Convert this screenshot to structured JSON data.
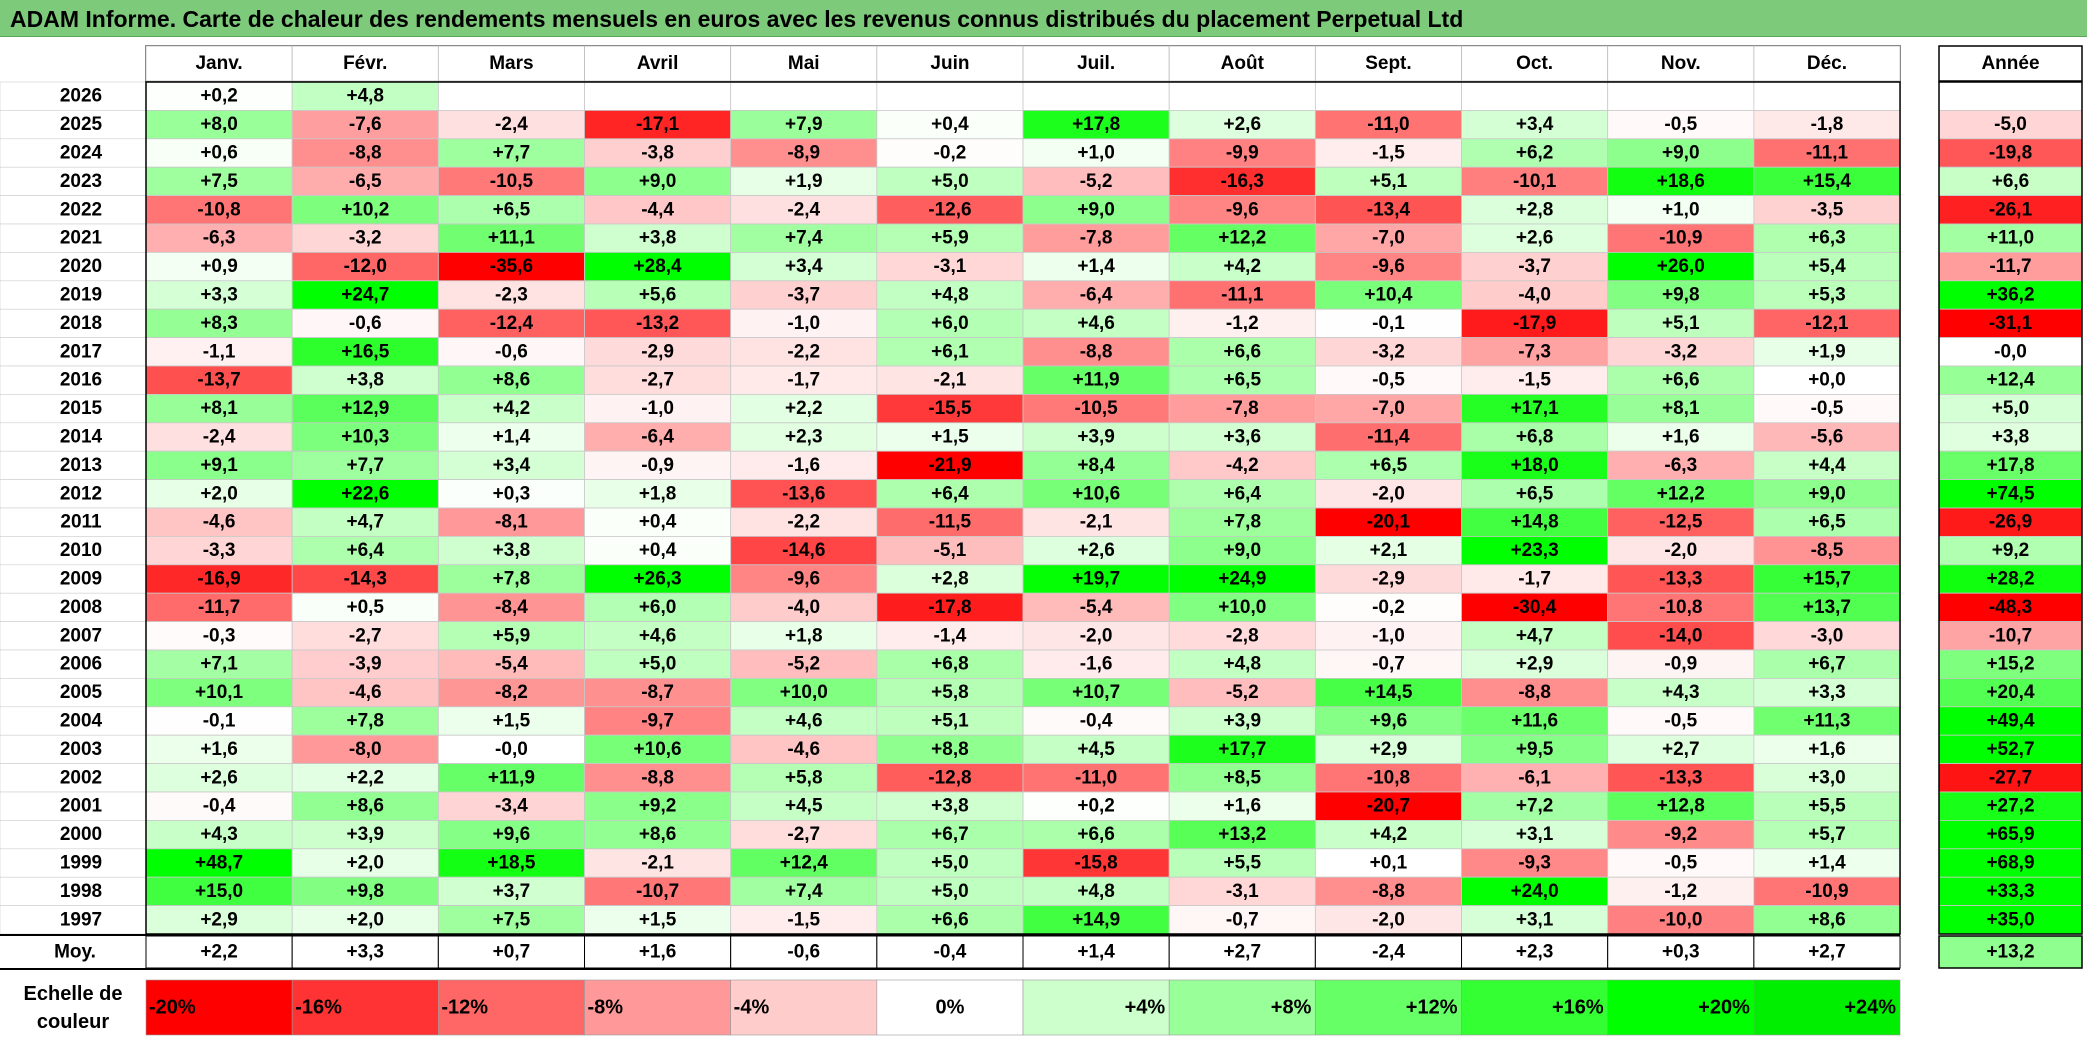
{
  "title": "ADAM Informe. Carte de chaleur des rendements mensuels en euros avec les revenus connus distribués du placement Perpetual Ltd",
  "chart_data": {
    "type": "heatmap",
    "months": [
      "Janv.",
      "Févr.",
      "Mars",
      "Avril",
      "Mai",
      "Juin",
      "Juil.",
      "Août",
      "Sept.",
      "Oct.",
      "Nov.",
      "Déc."
    ],
    "year_header": "Année",
    "rows": [
      {
        "year": "2026",
        "values": [
          "+0,2",
          "+4,8",
          null,
          null,
          null,
          null,
          null,
          null,
          null,
          null,
          null,
          null
        ],
        "annual": null
      },
      {
        "year": "2025",
        "values": [
          "+8,0",
          "-7,6",
          "-2,4",
          "-17,1",
          "+7,9",
          "+0,4",
          "+17,8",
          "+2,6",
          "-11,0",
          "+3,4",
          "-0,5",
          "-1,8"
        ],
        "annual": "-5,0"
      },
      {
        "year": "2024",
        "values": [
          "+0,6",
          "-8,8",
          "+7,7",
          "-3,8",
          "-8,9",
          "-0,2",
          "+1,0",
          "-9,9",
          "-1,5",
          "+6,2",
          "+9,0",
          "-11,1"
        ],
        "annual": "-19,8"
      },
      {
        "year": "2023",
        "values": [
          "+7,5",
          "-6,5",
          "-10,5",
          "+9,0",
          "+1,9",
          "+5,0",
          "-5,2",
          "-16,3",
          "+5,1",
          "-10,1",
          "+18,6",
          "+15,4"
        ],
        "annual": "+6,6"
      },
      {
        "year": "2022",
        "values": [
          "-10,8",
          "+10,2",
          "+6,5",
          "-4,4",
          "-2,4",
          "-12,6",
          "+9,0",
          "-9,6",
          "-13,4",
          "+2,8",
          "+1,0",
          "-3,5"
        ],
        "annual": "-26,1"
      },
      {
        "year": "2021",
        "values": [
          "-6,3",
          "-3,2",
          "+11,1",
          "+3,8",
          "+7,4",
          "+5,9",
          "-7,8",
          "+12,2",
          "-7,0",
          "+2,6",
          "-10,9",
          "+6,3"
        ],
        "annual": "+11,0"
      },
      {
        "year": "2020",
        "values": [
          "+0,9",
          "-12,0",
          "-35,6",
          "+28,4",
          "+3,4",
          "-3,1",
          "+1,4",
          "+4,2",
          "-9,6",
          "-3,7",
          "+26,0",
          "+5,4"
        ],
        "annual": "-11,7"
      },
      {
        "year": "2019",
        "values": [
          "+3,3",
          "+24,7",
          "-2,3",
          "+5,6",
          "-3,7",
          "+4,8",
          "-6,4",
          "-11,1",
          "+10,4",
          "-4,0",
          "+9,8",
          "+5,3"
        ],
        "annual": "+36,2"
      },
      {
        "year": "2018",
        "values": [
          "+8,3",
          "-0,6",
          "-12,4",
          "-13,2",
          "-1,0",
          "+6,0",
          "+4,6",
          "-1,2",
          "-0,1",
          "-17,9",
          "+5,1",
          "-12,1"
        ],
        "annual": "-31,1"
      },
      {
        "year": "2017",
        "values": [
          "-1,1",
          "+16,5",
          "-0,6",
          "-2,9",
          "-2,2",
          "+6,1",
          "-8,8",
          "+6,6",
          "-3,2",
          "-7,3",
          "-3,2",
          "+1,9"
        ],
        "annual": "-0,0"
      },
      {
        "year": "2016",
        "values": [
          "-13,7",
          "+3,8",
          "+8,6",
          "-2,7",
          "-1,7",
          "-2,1",
          "+11,9",
          "+6,5",
          "-0,5",
          "-1,5",
          "+6,6",
          "+0,0"
        ],
        "annual": "+12,4"
      },
      {
        "year": "2015",
        "values": [
          "+8,1",
          "+12,9",
          "+4,2",
          "-1,0",
          "+2,2",
          "-15,5",
          "-10,5",
          "-7,8",
          "-7,0",
          "+17,1",
          "+8,1",
          "-0,5"
        ],
        "annual": "+5,0"
      },
      {
        "year": "2014",
        "values": [
          "-2,4",
          "+10,3",
          "+1,4",
          "-6,4",
          "+2,3",
          "+1,5",
          "+3,9",
          "+3,6",
          "-11,4",
          "+6,8",
          "+1,6",
          "-5,6"
        ],
        "annual": "+3,8"
      },
      {
        "year": "2013",
        "values": [
          "+9,1",
          "+7,7",
          "+3,4",
          "-0,9",
          "-1,6",
          "-21,9",
          "+8,4",
          "-4,2",
          "+6,5",
          "+18,0",
          "-6,3",
          "+4,4"
        ],
        "annual": "+17,8"
      },
      {
        "year": "2012",
        "values": [
          "+2,0",
          "+22,6",
          "+0,3",
          "+1,8",
          "-13,6",
          "+6,4",
          "+10,6",
          "+6,4",
          "-2,0",
          "+6,5",
          "+12,2",
          "+9,0"
        ],
        "annual": "+74,5"
      },
      {
        "year": "2011",
        "values": [
          "-4,6",
          "+4,7",
          "-8,1",
          "+0,4",
          "-2,2",
          "-11,5",
          "-2,1",
          "+7,8",
          "-20,1",
          "+14,8",
          "-12,5",
          "+6,5"
        ],
        "annual": "-26,9"
      },
      {
        "year": "2010",
        "values": [
          "-3,3",
          "+6,4",
          "+3,8",
          "+0,4",
          "-14,6",
          "-5,1",
          "+2,6",
          "+9,0",
          "+2,1",
          "+23,3",
          "-2,0",
          "-8,5"
        ],
        "annual": "+9,2"
      },
      {
        "year": "2009",
        "values": [
          "-16,9",
          "-14,3",
          "+7,8",
          "+26,3",
          "-9,6",
          "+2,8",
          "+19,7",
          "+24,9",
          "-2,9",
          "-1,7",
          "-13,3",
          "+15,7"
        ],
        "annual": "+28,2"
      },
      {
        "year": "2008",
        "values": [
          "-11,7",
          "+0,5",
          "-8,4",
          "+6,0",
          "-4,0",
          "-17,8",
          "-5,4",
          "+10,0",
          "-0,2",
          "-30,4",
          "-10,8",
          "+13,7"
        ],
        "annual": "-48,3"
      },
      {
        "year": "2007",
        "values": [
          "-0,3",
          "-2,7",
          "+5,9",
          "+4,6",
          "+1,8",
          "-1,4",
          "-2,0",
          "-2,8",
          "-1,0",
          "+4,7",
          "-14,0",
          "-3,0"
        ],
        "annual": "-10,7"
      },
      {
        "year": "2006",
        "values": [
          "+7,1",
          "-3,9",
          "-5,4",
          "+5,0",
          "-5,2",
          "+6,8",
          "-1,6",
          "+4,8",
          "-0,7",
          "+2,9",
          "-0,9",
          "+6,7"
        ],
        "annual": "+15,2"
      },
      {
        "year": "2005",
        "values": [
          "+10,1",
          "-4,6",
          "-8,2",
          "-8,7",
          "+10,0",
          "+5,8",
          "+10,7",
          "-5,2",
          "+14,5",
          "-8,8",
          "+4,3",
          "+3,3"
        ],
        "annual": "+20,4"
      },
      {
        "year": "2004",
        "values": [
          "-0,1",
          "+7,8",
          "+1,5",
          "-9,7",
          "+4,6",
          "+5,1",
          "-0,4",
          "+3,9",
          "+9,6",
          "+11,6",
          "-0,5",
          "+11,3"
        ],
        "annual": "+49,4"
      },
      {
        "year": "2003",
        "values": [
          "+1,6",
          "-8,0",
          "-0,0",
          "+10,6",
          "-4,6",
          "+8,8",
          "+4,5",
          "+17,7",
          "+2,9",
          "+9,5",
          "+2,7",
          "+1,6"
        ],
        "annual": "+52,7"
      },
      {
        "year": "2002",
        "values": [
          "+2,6",
          "+2,2",
          "+11,9",
          "-8,8",
          "+5,8",
          "-12,8",
          "-11,0",
          "+8,5",
          "-10,8",
          "-6,1",
          "-13,3",
          "+3,0"
        ],
        "annual": "-27,7"
      },
      {
        "year": "2001",
        "values": [
          "-0,4",
          "+8,6",
          "-3,4",
          "+9,2",
          "+4,5",
          "+3,8",
          "+0,2",
          "+1,6",
          "-20,7",
          "+7,2",
          "+12,8",
          "+5,5"
        ],
        "annual": "+27,2"
      },
      {
        "year": "2000",
        "values": [
          "+4,3",
          "+3,9",
          "+9,6",
          "+8,6",
          "-2,7",
          "+6,7",
          "+6,6",
          "+13,2",
          "+4,2",
          "+3,1",
          "-9,2",
          "+5,7"
        ],
        "annual": "+65,9"
      },
      {
        "year": "1999",
        "values": [
          "+48,7",
          "+2,0",
          "+18,5",
          "-2,1",
          "+12,4",
          "+5,0",
          "-15,8",
          "+5,5",
          "+0,1",
          "-9,3",
          "-0,5",
          "+1,4"
        ],
        "annual": "+68,9"
      },
      {
        "year": "1998",
        "values": [
          "+15,0",
          "+9,8",
          "+3,7",
          "-10,7",
          "+7,4",
          "+5,0",
          "+4,8",
          "-3,1",
          "-8,8",
          "+24,0",
          "-1,2",
          "-10,9"
        ],
        "annual": "+33,3"
      },
      {
        "year": "1997",
        "values": [
          "+2,9",
          "+2,0",
          "+7,5",
          "+1,5",
          "-1,5",
          "+6,6",
          "+14,9",
          "-0,7",
          "-2,0",
          "+3,1",
          "-10,0",
          "+8,6"
        ],
        "annual": "+35,0"
      }
    ],
    "average": {
      "label": "Moy.",
      "values": [
        "+2,2",
        "+3,3",
        "+0,7",
        "+1,6",
        "-0,6",
        "-0,4",
        "+1,4",
        "+2,7",
        "-2,4",
        "+2,3",
        "+0,3",
        "+2,7"
      ],
      "annual": "+13,2"
    },
    "scale": {
      "label_line1": "Echelle de",
      "label_line2": "couleur",
      "steps": [
        {
          "label": "-20%",
          "value": -20,
          "color": "#ff0000",
          "align": "left"
        },
        {
          "label": "-16%",
          "value": -16,
          "color": "#ff3333",
          "align": "left"
        },
        {
          "label": "-12%",
          "value": -12,
          "color": "#ff6666",
          "align": "left"
        },
        {
          "label": "-8%",
          "value": -8,
          "color": "#ff9999",
          "align": "left"
        },
        {
          "label": "-4%",
          "value": -4,
          "color": "#ffcccc",
          "align": "left"
        },
        {
          "label": "0%",
          "value": 0,
          "color": "#ffffff",
          "align": "center"
        },
        {
          "label": "+4%",
          "value": 4,
          "color": "#ccffcc",
          "align": "right"
        },
        {
          "label": "+8%",
          "value": 8,
          "color": "#99ff99",
          "align": "right"
        },
        {
          "label": "+12%",
          "value": 12,
          "color": "#66ff66",
          "align": "right"
        },
        {
          "label": "+16%",
          "value": 16,
          "color": "#33ff33",
          "align": "right"
        },
        {
          "label": "+20%",
          "value": 20,
          "color": "#00ff00",
          "align": "right"
        },
        {
          "label": "+24%",
          "value": 24,
          "color": "#00ee00",
          "align": "right"
        }
      ]
    },
    "colors": {
      "positive_max": "#00ff00",
      "negative_max": "#ff0000",
      "neutral": "#ffffff",
      "title_bar": "#7dca7a"
    }
  }
}
